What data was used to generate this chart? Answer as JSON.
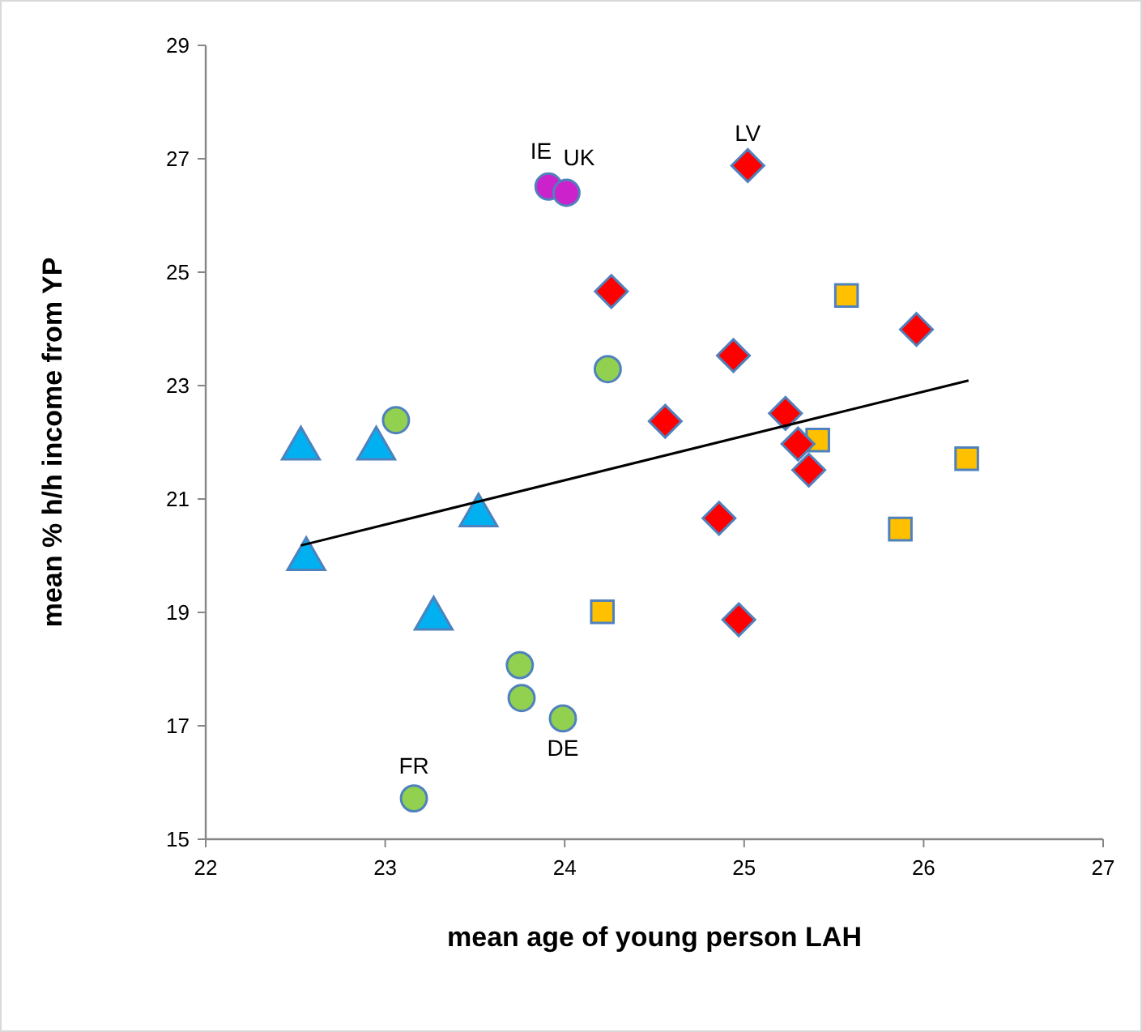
{
  "chart_data": {
    "type": "scatter",
    "xlabel": "mean age of young person LAH",
    "ylabel": "mean % h/h income from YP",
    "xlim": [
      22,
      27
    ],
    "xticks": [
      22,
      23,
      24,
      25,
      26,
      27
    ],
    "ylim": [
      15,
      29
    ],
    "yticks": [
      15,
      17,
      19,
      21,
      23,
      25,
      27,
      29
    ],
    "grid": false,
    "series": [
      {
        "color": "#cc22cc",
        "marker": "circle",
        "x": [
          23.91,
          24.01
        ],
        "values": [
          26.51,
          26.4
        ]
      },
      {
        "color": "#92d050",
        "marker": "circle",
        "x": [
          24.24,
          23.06,
          23.75,
          23.76,
          23.99,
          23.16
        ],
        "values": [
          23.29,
          22.39,
          18.07,
          17.49,
          17.13,
          15.72
        ]
      },
      {
        "color": "#00b0f0",
        "marker": "triangle",
        "x": [
          22.53,
          22.95,
          23.52,
          22.56,
          23.27
        ],
        "values": [
          21.89,
          21.89,
          20.71,
          19.94,
          18.89
        ]
      },
      {
        "color": "#ffc000",
        "marker": "square",
        "x": [
          24.21,
          25.57,
          25.41,
          26.24,
          25.87
        ],
        "values": [
          19.01,
          24.59,
          22.04,
          21.71,
          20.47
        ]
      },
      {
        "color": "#ff0000",
        "marker": "diamond",
        "x": [
          24.26,
          24.56,
          25.02,
          25.96,
          24.94,
          25.23,
          25.3,
          25.36,
          24.86,
          24.97
        ],
        "values": [
          24.66,
          22.37,
          26.88,
          23.99,
          23.53,
          22.51,
          21.97,
          21.51,
          20.66,
          18.87
        ]
      },
      {
        "type": "line",
        "color": "#000000",
        "marker": "none",
        "x": [
          22.53,
          26.25
        ],
        "values": [
          20.18,
          23.09
        ]
      }
    ],
    "annotations": [
      {
        "text": "IE",
        "x": 23.91,
        "y": 26.51
      },
      {
        "text": "UK",
        "x": 24.01,
        "y": 26.4
      },
      {
        "text": "LV",
        "x": 25.02,
        "y": 26.88
      },
      {
        "text": "FR",
        "x": 23.16,
        "y": 15.72
      },
      {
        "text": "DE",
        "x": 23.99,
        "y": 17.13
      }
    ]
  }
}
